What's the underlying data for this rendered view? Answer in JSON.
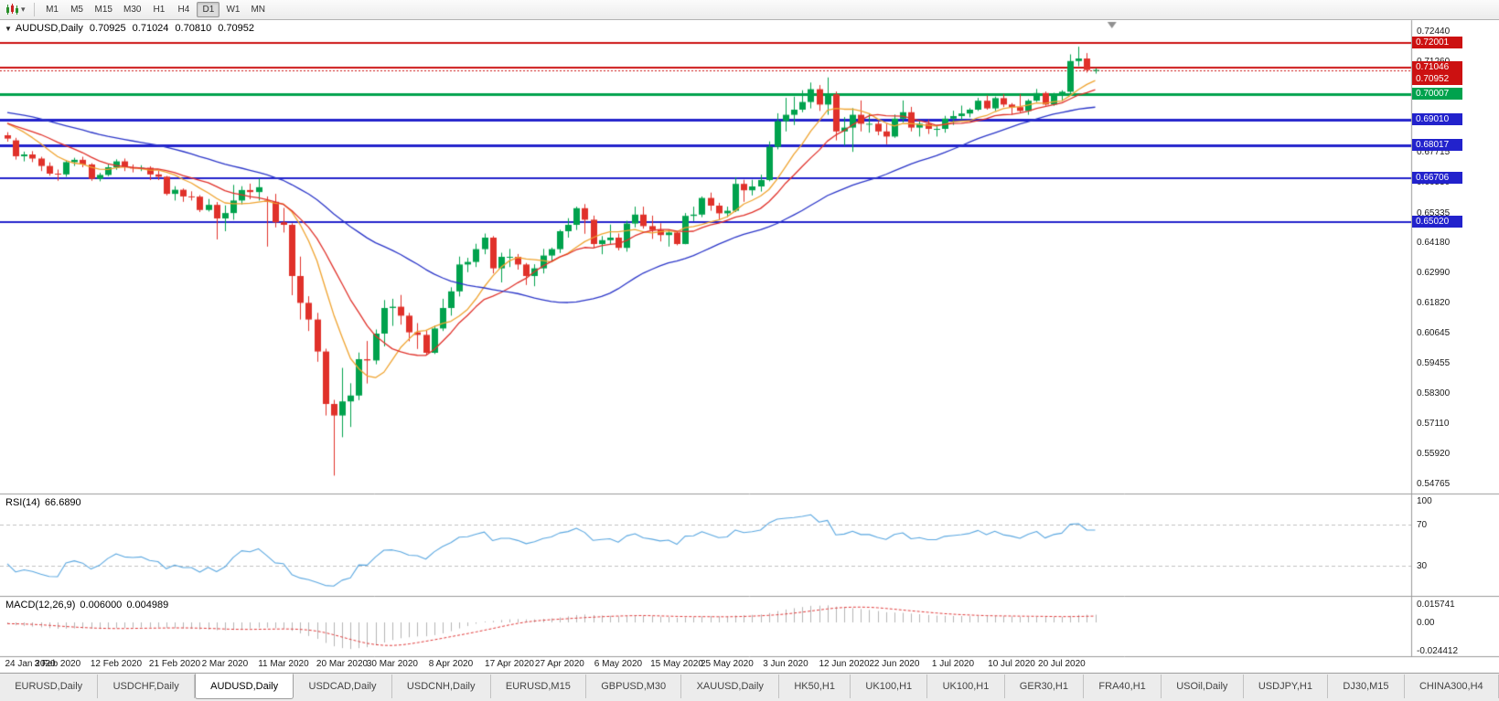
{
  "toolbar": {
    "caret_glyph": "▾",
    "timeframes": [
      "M1",
      "M5",
      "M15",
      "M30",
      "H1",
      "H4",
      "D1",
      "W1",
      "MN"
    ],
    "active_timeframe": "D1"
  },
  "chart": {
    "collapse_arrow_glyph": "▼",
    "symbol_label": "AUDUSD,Daily",
    "ohlc": {
      "open": "0.70925",
      "high": "0.71024",
      "low": "0.70810",
      "close": "0.70952"
    },
    "rsi": {
      "name": "RSI(14)",
      "value": "66.6890"
    },
    "macd": {
      "name": "MACD(12,26,9)",
      "main": "0.006000",
      "signal": "0.004989"
    }
  },
  "chart_data": {
    "type": "candlestick",
    "symbol": "AUDUSD",
    "timeframe": "Daily",
    "grid": false,
    "price_scale": {
      "top": 0.729,
      "bottom": 0.544,
      "ticks": [
        "0.72440",
        "0.71260",
        "0.70080",
        "0.68900",
        "0.67715",
        "0.66530",
        "0.65335",
        "0.64180",
        "0.62990",
        "0.61820",
        "0.60645",
        "0.59455",
        "0.58300",
        "0.57110",
        "0.55920",
        "0.54765"
      ]
    },
    "axis_badges": [
      {
        "label": "0.72001",
        "price": 0.72001,
        "color": "#cc1111"
      },
      {
        "label": "0.71046",
        "price": 0.71046,
        "color": "#cc1111"
      },
      {
        "label": "0.70952",
        "price": 0.70952,
        "color": "#cc1111"
      },
      {
        "label": "0.70007",
        "price": 0.70007,
        "color": "#00a24d"
      },
      {
        "label": "0.69010",
        "price": 0.6901,
        "color": "#2222cc"
      },
      {
        "label": "0.68017",
        "price": 0.68017,
        "color": "#2222cc"
      },
      {
        "label": "0.66706",
        "price": 0.66706,
        "color": "#2222cc"
      },
      {
        "label": "0.65020",
        "price": 0.6502,
        "color": "#2222cc"
      }
    ],
    "hlines": [
      {
        "price": 0.72001,
        "color": "#cc1111",
        "w": 2
      },
      {
        "price": 0.71046,
        "color": "#cc1111",
        "w": 2
      },
      {
        "price": 0.70007,
        "color": "#00a24d",
        "w": 3
      },
      {
        "price": 0.6901,
        "color": "#2222cc",
        "w": 3
      },
      {
        "price": 0.68017,
        "color": "#2222cc",
        "w": 3
      },
      {
        "price": 0.66706,
        "color": "#2222cc",
        "w": 2
      },
      {
        "price": 0.6502,
        "color": "#2222cc",
        "w": 2
      }
    ],
    "current_price": 0.70952,
    "ma_periods": {
      "fast": 8,
      "mid": 13,
      "slow": 35
    },
    "rsi_panel": {
      "period": 14,
      "levels": [
        70,
        30
      ],
      "axis_labels": [
        "100",
        "70",
        "30"
      ],
      "range": [
        0,
        100
      ]
    },
    "macd_panel": {
      "axis_labels": [
        "0.015741",
        "0.00",
        "-0.024412"
      ],
      "scale_max": 0.015741,
      "scale_min": -0.024412
    },
    "shift_marker_index": 132,
    "x_labels": [
      {
        "label": "24 Jan 2020",
        "i": 0
      },
      {
        "label": "3 Feb 2020",
        "i": 6
      },
      {
        "label": "12 Feb 2020",
        "i": 13
      },
      {
        "label": "21 Feb 2020",
        "i": 20
      },
      {
        "label": "2 Mar 2020",
        "i": 26
      },
      {
        "label": "11 Mar 2020",
        "i": 33
      },
      {
        "label": "20 Mar 2020",
        "i": 40
      },
      {
        "label": "30 Mar 2020",
        "i": 46
      },
      {
        "label": "8 Apr 2020",
        "i": 53
      },
      {
        "label": "17 Apr 2020",
        "i": 60
      },
      {
        "label": "27 Apr 2020",
        "i": 66
      },
      {
        "label": "6 May 2020",
        "i": 73
      },
      {
        "label": "15 May 2020",
        "i": 80
      },
      {
        "label": "25 May 2020",
        "i": 86
      },
      {
        "label": "3 Jun 2020",
        "i": 93
      },
      {
        "label": "12 Jun 2020",
        "i": 100
      },
      {
        "label": "22 Jun 2020",
        "i": 106
      },
      {
        "label": "1 Jul 2020",
        "i": 113
      },
      {
        "label": "10 Jul 2020",
        "i": 120
      },
      {
        "label": "20 Jul 2020",
        "i": 126
      }
    ],
    "warmup_closes": [
      0.688,
      0.6865,
      0.687,
      0.6855,
      0.686,
      0.6845,
      0.685,
      0.6835,
      0.684,
      0.6855,
      0.687,
      0.6885,
      0.69,
      0.6895,
      0.691,
      0.6925,
      0.694,
      0.6955,
      0.697,
      0.6985,
      0.7,
      0.702,
      0.7035,
      0.7025,
      0.701,
      0.6995,
      0.698,
      0.6965,
      0.695,
      0.6935,
      0.692,
      0.6905,
      0.689,
      0.6875,
      0.688,
      0.6895,
      0.691,
      0.6925,
      0.6915,
      0.69,
      0.6885,
      0.687,
      0.6875,
      0.689,
      0.6905,
      0.692,
      0.691,
      0.6895,
      0.688,
      0.686
    ],
    "candles": [
      [
        0.684,
        0.6852,
        0.6815,
        0.6827
      ],
      [
        0.682,
        0.683,
        0.6745,
        0.6758
      ],
      [
        0.6758,
        0.6776,
        0.6738,
        0.6765
      ],
      [
        0.6765,
        0.6778,
        0.6735,
        0.6749
      ],
      [
        0.6749,
        0.6756,
        0.67,
        0.672
      ],
      [
        0.672,
        0.6734,
        0.6682,
        0.669
      ],
      [
        0.669,
        0.6706,
        0.6662,
        0.6687
      ],
      [
        0.6687,
        0.6742,
        0.6678,
        0.6735
      ],
      [
        0.6735,
        0.6752,
        0.672,
        0.6744
      ],
      [
        0.6744,
        0.6756,
        0.6715,
        0.6726
      ],
      [
        0.6726,
        0.6731,
        0.6662,
        0.667
      ],
      [
        0.667,
        0.6693,
        0.666,
        0.6685
      ],
      [
        0.6685,
        0.6726,
        0.668,
        0.6715
      ],
      [
        0.6715,
        0.6746,
        0.6705,
        0.6738
      ],
      [
        0.6738,
        0.6749,
        0.67,
        0.6715
      ],
      [
        0.6715,
        0.6726,
        0.6695,
        0.671
      ],
      [
        0.671,
        0.6723,
        0.67,
        0.6713
      ],
      [
        0.6713,
        0.6719,
        0.6665,
        0.6687
      ],
      [
        0.6687,
        0.6701,
        0.6665,
        0.6678
      ],
      [
        0.6678,
        0.6681,
        0.6605,
        0.6611
      ],
      [
        0.6611,
        0.6641,
        0.6585,
        0.6627
      ],
      [
        0.6627,
        0.6632,
        0.658,
        0.6601
      ],
      [
        0.6601,
        0.6621,
        0.6585,
        0.66
      ],
      [
        0.66,
        0.6606,
        0.654,
        0.6548
      ],
      [
        0.6548,
        0.6591,
        0.6542,
        0.6568
      ],
      [
        0.6568,
        0.6579,
        0.6433,
        0.6515
      ],
      [
        0.6515,
        0.6566,
        0.6465,
        0.6536
      ],
      [
        0.6536,
        0.6646,
        0.651,
        0.6585
      ],
      [
        0.6585,
        0.6641,
        0.657,
        0.6626
      ],
      [
        0.6626,
        0.6651,
        0.659,
        0.6618
      ],
      [
        0.6618,
        0.6671,
        0.6585,
        0.6637
      ],
      [
        0.6585,
        0.6601,
        0.6405,
        0.658
      ],
      [
        0.658,
        0.6611,
        0.648,
        0.65
      ],
      [
        0.65,
        0.6556,
        0.646,
        0.649
      ],
      [
        0.649,
        0.6496,
        0.6215,
        0.629
      ],
      [
        0.629,
        0.6366,
        0.612,
        0.6185
      ],
      [
        0.6185,
        0.6211,
        0.6075,
        0.612
      ],
      [
        0.612,
        0.6146,
        0.5955,
        0.5995
      ],
      [
        0.5995,
        0.6006,
        0.5745,
        0.579
      ],
      [
        0.579,
        0.5806,
        0.551,
        0.5745
      ],
      [
        0.5745,
        0.5931,
        0.566,
        0.58
      ],
      [
        0.58,
        0.5871,
        0.57,
        0.5823
      ],
      [
        0.5823,
        0.5991,
        0.5805,
        0.5965
      ],
      [
        0.5965,
        0.6036,
        0.587,
        0.596
      ],
      [
        0.596,
        0.6081,
        0.5945,
        0.6065
      ],
      [
        0.6065,
        0.6196,
        0.6015,
        0.6165
      ],
      [
        0.6165,
        0.6201,
        0.6095,
        0.617
      ],
      [
        0.617,
        0.6216,
        0.61,
        0.6135
      ],
      [
        0.6135,
        0.6146,
        0.6035,
        0.607
      ],
      [
        0.607,
        0.6106,
        0.6005,
        0.606
      ],
      [
        0.606,
        0.6076,
        0.598,
        0.599
      ],
      [
        0.599,
        0.6096,
        0.5985,
        0.6085
      ],
      [
        0.6085,
        0.6201,
        0.6075,
        0.6165
      ],
      [
        0.6165,
        0.6246,
        0.6135,
        0.623
      ],
      [
        0.623,
        0.6366,
        0.621,
        0.6335
      ],
      [
        0.6335,
        0.6361,
        0.6305,
        0.6345
      ],
      [
        0.6345,
        0.6416,
        0.6325,
        0.6395
      ],
      [
        0.6395,
        0.6456,
        0.6375,
        0.644
      ],
      [
        0.644,
        0.6446,
        0.63,
        0.632
      ],
      [
        0.632,
        0.6381,
        0.6265,
        0.6365
      ],
      [
        0.6365,
        0.6396,
        0.6325,
        0.6365
      ],
      [
        0.6365,
        0.6376,
        0.6315,
        0.6335
      ],
      [
        0.6335,
        0.6341,
        0.6255,
        0.629
      ],
      [
        0.629,
        0.6336,
        0.625,
        0.632
      ],
      [
        0.632,
        0.6396,
        0.63,
        0.637
      ],
      [
        0.637,
        0.6401,
        0.635,
        0.6395
      ],
      [
        0.6395,
        0.6471,
        0.638,
        0.6465
      ],
      [
        0.6465,
        0.6516,
        0.644,
        0.649
      ],
      [
        0.649,
        0.6561,
        0.647,
        0.6555
      ],
      [
        0.6555,
        0.6571,
        0.6455,
        0.651
      ],
      [
        0.651,
        0.6526,
        0.64,
        0.6415
      ],
      [
        0.6415,
        0.6446,
        0.6375,
        0.643
      ],
      [
        0.643,
        0.6491,
        0.6415,
        0.644
      ],
      [
        0.644,
        0.6456,
        0.639,
        0.64
      ],
      [
        0.64,
        0.6506,
        0.6385,
        0.6495
      ],
      [
        0.6495,
        0.6561,
        0.648,
        0.653
      ],
      [
        0.653,
        0.6561,
        0.6475,
        0.6485
      ],
      [
        0.6485,
        0.6526,
        0.6435,
        0.647
      ],
      [
        0.647,
        0.6496,
        0.6425,
        0.645
      ],
      [
        0.645,
        0.6471,
        0.6405,
        0.646
      ],
      [
        0.646,
        0.6466,
        0.641,
        0.6415
      ],
      [
        0.6415,
        0.6536,
        0.6414,
        0.6525
      ],
      [
        0.6525,
        0.6561,
        0.6505,
        0.653
      ],
      [
        0.653,
        0.6601,
        0.652,
        0.6595
      ],
      [
        0.6595,
        0.6616,
        0.6545,
        0.6565
      ],
      [
        0.6565,
        0.6576,
        0.651,
        0.6535
      ],
      [
        0.6535,
        0.6561,
        0.652,
        0.6545
      ],
      [
        0.6545,
        0.6676,
        0.654,
        0.665
      ],
      [
        0.665,
        0.6666,
        0.658,
        0.6625
      ],
      [
        0.6625,
        0.6666,
        0.6605,
        0.664
      ],
      [
        0.664,
        0.6686,
        0.662,
        0.6665
      ],
      [
        0.6665,
        0.6816,
        0.666,
        0.6795
      ],
      [
        0.6795,
        0.6926,
        0.6785,
        0.6895
      ],
      [
        0.6895,
        0.6986,
        0.6855,
        0.692
      ],
      [
        0.692,
        0.6991,
        0.688,
        0.694
      ],
      [
        0.694,
        0.7016,
        0.693,
        0.697
      ],
      [
        0.697,
        0.7046,
        0.6945,
        0.702
      ],
      [
        0.702,
        0.7036,
        0.6935,
        0.696
      ],
      [
        0.696,
        0.7066,
        0.692,
        0.7
      ],
      [
        0.7,
        0.7011,
        0.682,
        0.6855
      ],
      [
        0.6855,
        0.6911,
        0.68,
        0.687
      ],
      [
        0.687,
        0.6946,
        0.6775,
        0.692
      ],
      [
        0.692,
        0.6976,
        0.6855,
        0.6885
      ],
      [
        0.6885,
        0.6926,
        0.685,
        0.6885
      ],
      [
        0.6885,
        0.6896,
        0.684,
        0.6855
      ],
      [
        0.6855,
        0.6886,
        0.6805,
        0.6835
      ],
      [
        0.6835,
        0.6921,
        0.683,
        0.6905
      ],
      [
        0.6905,
        0.6976,
        0.689,
        0.693
      ],
      [
        0.693,
        0.6951,
        0.6855,
        0.687
      ],
      [
        0.687,
        0.6896,
        0.6835,
        0.6885
      ],
      [
        0.6885,
        0.6901,
        0.6845,
        0.6865
      ],
      [
        0.6865,
        0.6881,
        0.6835,
        0.6865
      ],
      [
        0.6865,
        0.6916,
        0.685,
        0.6905
      ],
      [
        0.6905,
        0.6936,
        0.688,
        0.6915
      ],
      [
        0.6915,
        0.6956,
        0.69,
        0.6925
      ],
      [
        0.6925,
        0.6946,
        0.691,
        0.694
      ],
      [
        0.694,
        0.6986,
        0.6935,
        0.6975
      ],
      [
        0.6975,
        0.6996,
        0.694,
        0.6945
      ],
      [
        0.6945,
        0.6991,
        0.6935,
        0.6985
      ],
      [
        0.6985,
        0.7001,
        0.695,
        0.696
      ],
      [
        0.696,
        0.6966,
        0.692,
        0.695
      ],
      [
        0.695,
        0.7001,
        0.693,
        0.6935
      ],
      [
        0.6935,
        0.6981,
        0.692,
        0.6975
      ],
      [
        0.6975,
        0.7021,
        0.697,
        0.7005
      ],
      [
        0.7005,
        0.7011,
        0.6955,
        0.696
      ],
      [
        0.696,
        0.7006,
        0.6955,
        0.6995
      ],
      [
        0.6995,
        0.7016,
        0.6975,
        0.701
      ],
      [
        0.701,
        0.7156,
        0.7005,
        0.713
      ],
      [
        0.713,
        0.7186,
        0.711,
        0.714
      ],
      [
        0.714,
        0.7161,
        0.7085,
        0.7095
      ],
      [
        0.70925,
        0.71024,
        0.7081,
        0.70952
      ]
    ],
    "colors": {
      "up": "#00a24d",
      "down": "#e0312a",
      "ma_fast": "#efa32f",
      "ma_mid": "#e0312a",
      "ma_slow": "#2a35c8",
      "rsi": "#5aa7e0",
      "macd_hist": "#b4b4b4",
      "macd_signal": "#e03b3b",
      "level_line": "#c0c0c0",
      "red_line": "#cc1111",
      "separator": "#9a9a9a"
    }
  },
  "tabs": {
    "items": [
      "EURUSD,Daily",
      "USDCHF,Daily",
      "AUDUSD,Daily",
      "USDCAD,Daily",
      "USDCNH,Daily",
      "EURUSD,M15",
      "GBPUSD,M30",
      "XAUUSD,Daily",
      "HK50,H1",
      "UK100,H1",
      "UK100,H1",
      "GER30,H1",
      "FRA40,H1",
      "USOil,Daily",
      "USDJPY,H1",
      "DJ30,M15",
      "CHINA300,H4"
    ],
    "active_index": 2
  }
}
